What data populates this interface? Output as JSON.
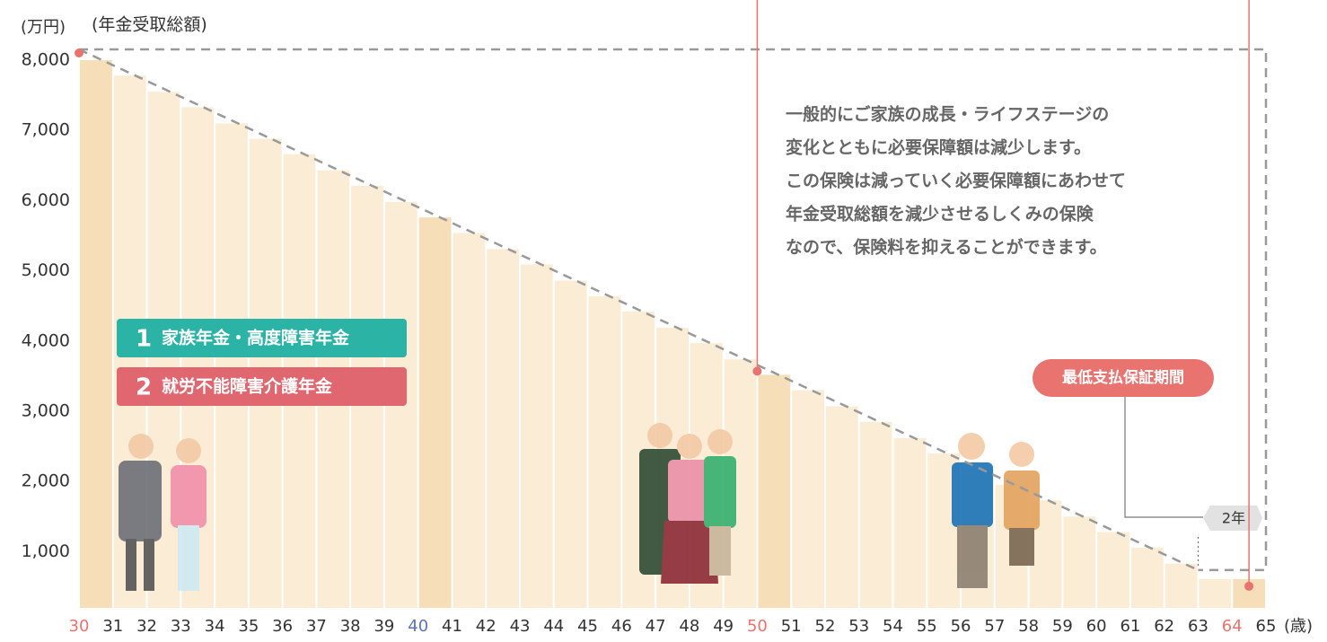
{
  "chart_data": {
    "type": "bar",
    "y_unit": "(万円)",
    "y_title": "(年金受取総額)",
    "x_unit": "(歳)",
    "x": [
      30,
      31,
      32,
      33,
      34,
      35,
      36,
      37,
      38,
      39,
      40,
      41,
      42,
      43,
      44,
      45,
      46,
      47,
      48,
      49,
      50,
      51,
      52,
      53,
      54,
      55,
      56,
      57,
      58,
      59,
      60,
      61,
      62,
      63,
      64
    ],
    "xlim": [
      30,
      65
    ],
    "xticks": [
      30,
      31,
      32,
      33,
      34,
      35,
      36,
      37,
      38,
      39,
      40,
      41,
      42,
      43,
      44,
      45,
      46,
      47,
      48,
      49,
      50,
      51,
      52,
      53,
      54,
      55,
      56,
      57,
      58,
      59,
      60,
      61,
      62,
      63,
      64,
      65
    ],
    "xtick_colors": [
      "#e8736f",
      "#333",
      "#333",
      "#333",
      "#333",
      "#333",
      "#333",
      "#333",
      "#333",
      "#333",
      "#5a74b3",
      "#333",
      "#333",
      "#333",
      "#333",
      "#333",
      "#333",
      "#333",
      "#333",
      "#333",
      "#e8736f",
      "#333",
      "#333",
      "#333",
      "#333",
      "#333",
      "#333",
      "#333",
      "#333",
      "#333",
      "#333",
      "#333",
      "#333",
      "#333",
      "#e8736f",
      "#333"
    ],
    "values": [
      8000,
      7780,
      7550,
      7330,
      7100,
      6880,
      6660,
      6430,
      6210,
      5980,
      5760,
      5540,
      5310,
      5090,
      4860,
      4640,
      4420,
      4190,
      3970,
      3740,
      3520,
      3300,
      3070,
      2850,
      2620,
      2400,
      2180,
      1950,
      1730,
      1500,
      1280,
      1060,
      830,
      610,
      610
    ],
    "color": "#fbecd6",
    "highlight_color": "#f6deb8",
    "highlight_x": [
      30,
      40,
      50,
      64
    ],
    "marker_x": [
      30,
      50,
      64
    ],
    "marker_color": "#e8736f",
    "ylim": [
      200,
      8000
    ],
    "yticks": [
      {
        "value": 1000,
        "label": "1,000"
      },
      {
        "value": 2000,
        "label": "2,000"
      },
      {
        "value": 3000,
        "label": "3,000"
      },
      {
        "value": 4000,
        "label": "4,000"
      },
      {
        "value": 5000,
        "label": "5,000"
      },
      {
        "value": 6000,
        "label": "6,000"
      },
      {
        "value": 7000,
        "label": "7,000"
      },
      {
        "value": 8000,
        "label": "8,000"
      }
    ],
    "grid": false,
    "note": [
      "一般的にご家族の成長・ライフステージの",
      "変化とともに必要保障額は減少します。",
      "この保険は減っていく必要保障額にあわせて",
      "年金受取総額を減少させるしくみの保険",
      "なので、保険料を抑えることができます。"
    ],
    "legend": [
      {
        "number": "1",
        "label": "家族年金・高度障害年金",
        "color": "#2bb3a6"
      },
      {
        "number": "2",
        "label": "就労不能障害介護年金",
        "color": "#e0676f"
      }
    ],
    "guarantee_label": "最低支払保証期間",
    "guarantee_period": "2年"
  }
}
